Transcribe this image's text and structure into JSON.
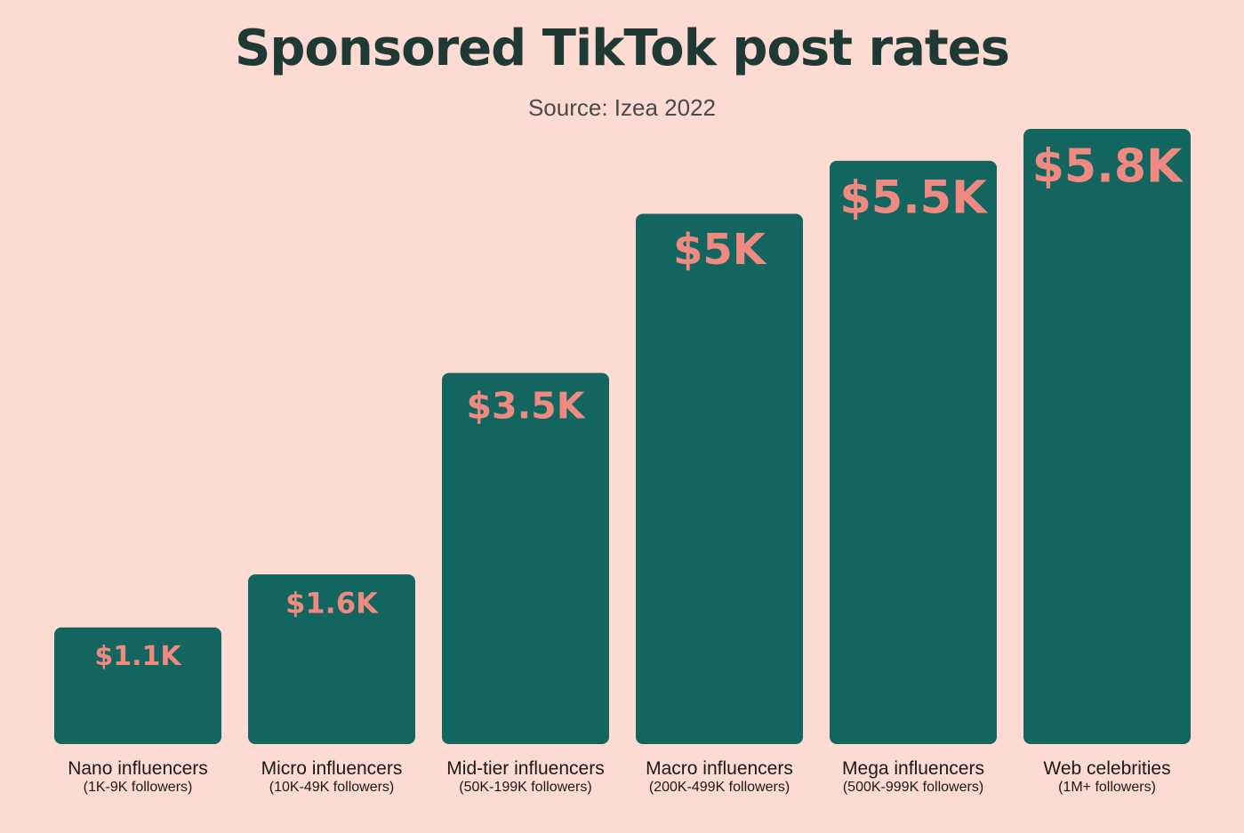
{
  "chart_data": {
    "type": "bar",
    "title": "Sponsored TikTok post rates",
    "subtitle": "Source: Izea 2022",
    "categories": [
      "Nano influencers",
      "Micro influencers",
      "Mid-tier influencers",
      "Macro influencers",
      "Mega influencers",
      "Web celebrities"
    ],
    "category_sublabels": [
      "(1K-9K followers)",
      "(10K-49K followers)",
      "(50K-199K followers)",
      "(200K-499K followers)",
      "(500K-999K followers)",
      "(1M+ followers)"
    ],
    "values": [
      1.1,
      1.6,
      3.5,
      5,
      5.5,
      5.8
    ],
    "value_labels": [
      "$1.1K",
      "$1.6K",
      "$3.5K",
      "$5K",
      "$5.5K",
      "$5.8K"
    ],
    "unit": "K USD",
    "ylim": [
      0,
      7
    ],
    "grid": false,
    "xlabel": "",
    "ylabel": ""
  },
  "colors": {
    "background": "#FDDAD2",
    "bar": "#12665F",
    "value_label": "#F08A80",
    "title": "#1F3A34"
  }
}
